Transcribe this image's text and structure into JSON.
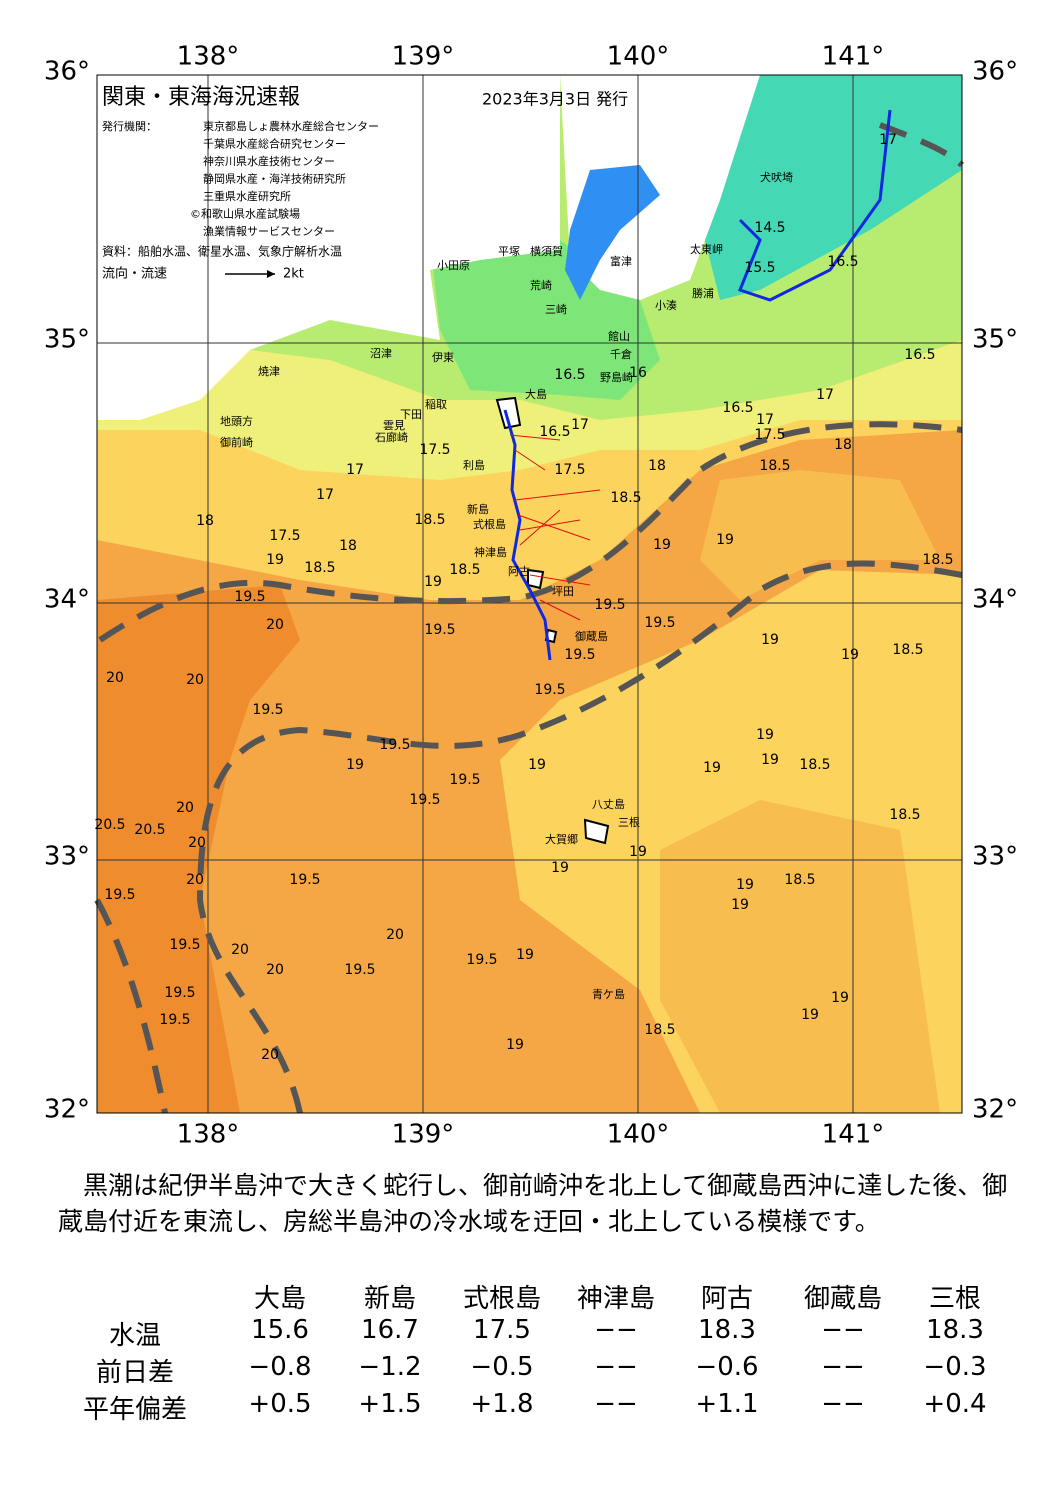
{
  "header": {
    "title": "関東・東海海況速報",
    "date": "2023年3月3日 発行"
  },
  "issuers": {
    "label": "発行機関：",
    "list": [
      "東京都島しょ農林水産総合センター",
      "千葉県水産総合研究センター",
      "神奈川県水産技術センター",
      "静岡県水産・海洋技術研究所",
      "三重県水産研究所",
      "©和歌山県水産試験場",
      "漁業情報サービスセンター"
    ]
  },
  "source": "資料：船舶水温、衛星水温、気象庁解析水温",
  "legend": {
    "label": "流向・流速",
    "speed": "2kt"
  },
  "axes": {
    "lon": [
      "138°",
      "139°",
      "140°",
      "141°"
    ],
    "lat": [
      "36°",
      "35°",
      "34°",
      "33°",
      "32°"
    ]
  },
  "places": [
    "大島",
    "利島",
    "新島",
    "式根島",
    "神津島",
    "阿古",
    "坪田",
    "御蔵島",
    "八丈島",
    "三根",
    "大賀郷",
    "青ケ島",
    "小田原",
    "平塚",
    "横須賀",
    "富津",
    "荒崎",
    "三崎",
    "館山",
    "千倉",
    "野島崎",
    "小湊",
    "勝浦",
    "太東岬",
    "犬吠埼",
    "沼津",
    "伊東",
    "稲取",
    "下田",
    "雲見",
    "石廊崎",
    "焼津",
    "地頭方",
    "御前崎"
  ],
  "contour_labels": [
    "17",
    "14.5",
    "16.5",
    "15.5",
    "16.5",
    "16",
    "16.5",
    "16.5",
    "17",
    "17.5",
    "17",
    "18",
    "18.5",
    "16.5",
    "17",
    "17.5",
    "18",
    "18.5",
    "17",
    "17",
    "17.5",
    "18.5",
    "18",
    "17.5",
    "18",
    "19",
    "18.5",
    "18.5",
    "19",
    "19.5",
    "20",
    "19.5",
    "19.5",
    "19.5",
    "19.5",
    "19.5",
    "19",
    "19",
    "18.5",
    "19",
    "19",
    "18.5",
    "20",
    "20",
    "19.5",
    "19.5",
    "19",
    "19.5",
    "19.5",
    "19",
    "19",
    "19",
    "19",
    "18.5",
    "18.5",
    "20.5",
    "20.5",
    "20",
    "20",
    "20",
    "19.5",
    "19",
    "19",
    "19",
    "19",
    "18.5",
    "19.5",
    "20",
    "19.5",
    "20",
    "20",
    "19.5",
    "19.5",
    "19",
    "19.5",
    "19.5",
    "19",
    "19",
    "18.5",
    "20",
    "19"
  ],
  "summary": "　黒潮は紀伊半島沖で大きく蛇行し、御前崎沖を北上して御蔵島西沖に達した後、御蔵島付近を東流し、房総半島沖の冷水域を迂回・北上している模様です。",
  "table": {
    "columns": [
      "大島",
      "新島",
      "式根島",
      "神津島",
      "阿古",
      "御蔵島",
      "三根"
    ],
    "rows": [
      [
        "水温",
        "15.6",
        "16.7",
        "17.5",
        "−−",
        "18.3",
        "−−",
        "18.3"
      ],
      [
        "前日差",
        "−0.8",
        "−1.2",
        "−0.5",
        "−−",
        "−0.6",
        "−−",
        "−0.3"
      ],
      [
        "平年偏差",
        "+0.5",
        "+1.5",
        "+1.8",
        "−−",
        "+1.1",
        "−−",
        "+0.4"
      ]
    ]
  }
}
